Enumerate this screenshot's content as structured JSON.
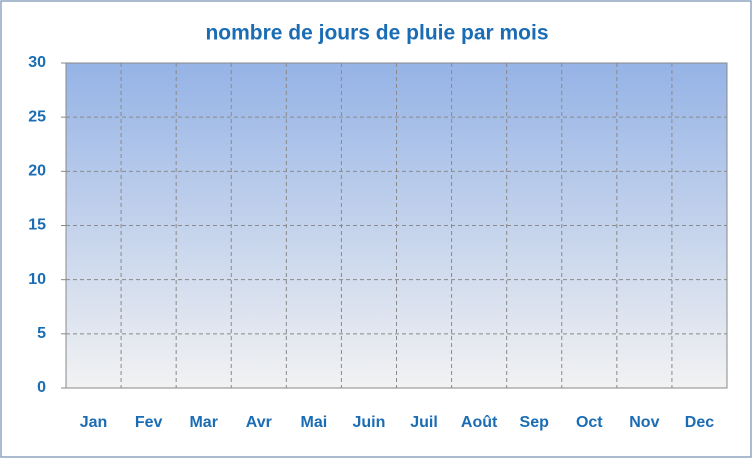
{
  "chart_data": {
    "type": "bar",
    "title": "nombre de jours de pluie par mois",
    "categories": [
      "Jan",
      "Fev",
      "Mar",
      "Avr",
      "Mai",
      "Juin",
      "Juil",
      "Août",
      "Sep",
      "Oct",
      "Nov",
      "Dec"
    ],
    "values": [
      0,
      0,
      0,
      0,
      0,
      0,
      0,
      0,
      0,
      0,
      0,
      0
    ],
    "ylim": [
      0,
      30
    ],
    "yticks": [
      0,
      5,
      10,
      15,
      20,
      25,
      30
    ],
    "grid": true
  }
}
